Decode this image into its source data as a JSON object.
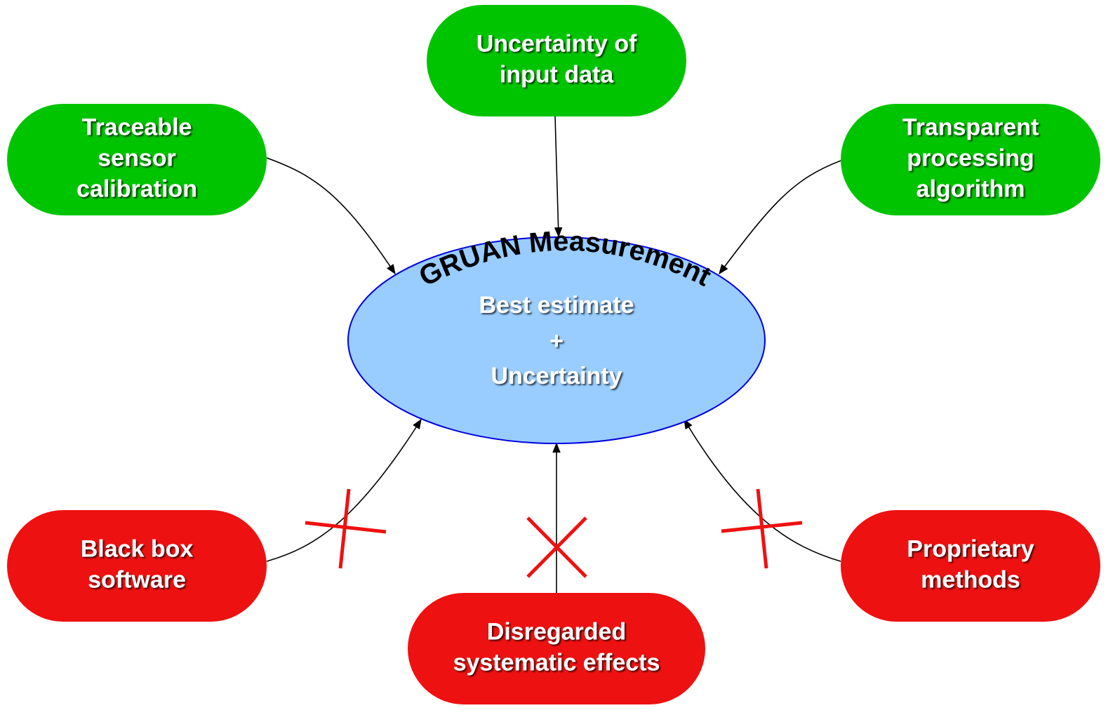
{
  "center": {
    "title": "GRUAN Measurement",
    "lines": [
      "Best estimate",
      "+",
      "Uncertainty"
    ],
    "color": "#99ccff"
  },
  "nodes": [
    {
      "lines": [
        "Traceable",
        "sensor",
        "calibration"
      ],
      "color": "#00c400"
    },
    {
      "lines": [
        "Uncertainty of",
        "input data"
      ],
      "color": "#00c400"
    },
    {
      "lines": [
        "Transparent",
        "processing",
        "algorithm"
      ],
      "color": "#00c400"
    },
    {
      "lines": [
        "Black box",
        "software"
      ],
      "color": "#ee1111"
    },
    {
      "lines": [
        "Disregarded",
        "systematic effects"
      ],
      "color": "#ee1111"
    },
    {
      "lines": [
        "Proprietary",
        "methods"
      ],
      "color": "#ee1111"
    }
  ]
}
